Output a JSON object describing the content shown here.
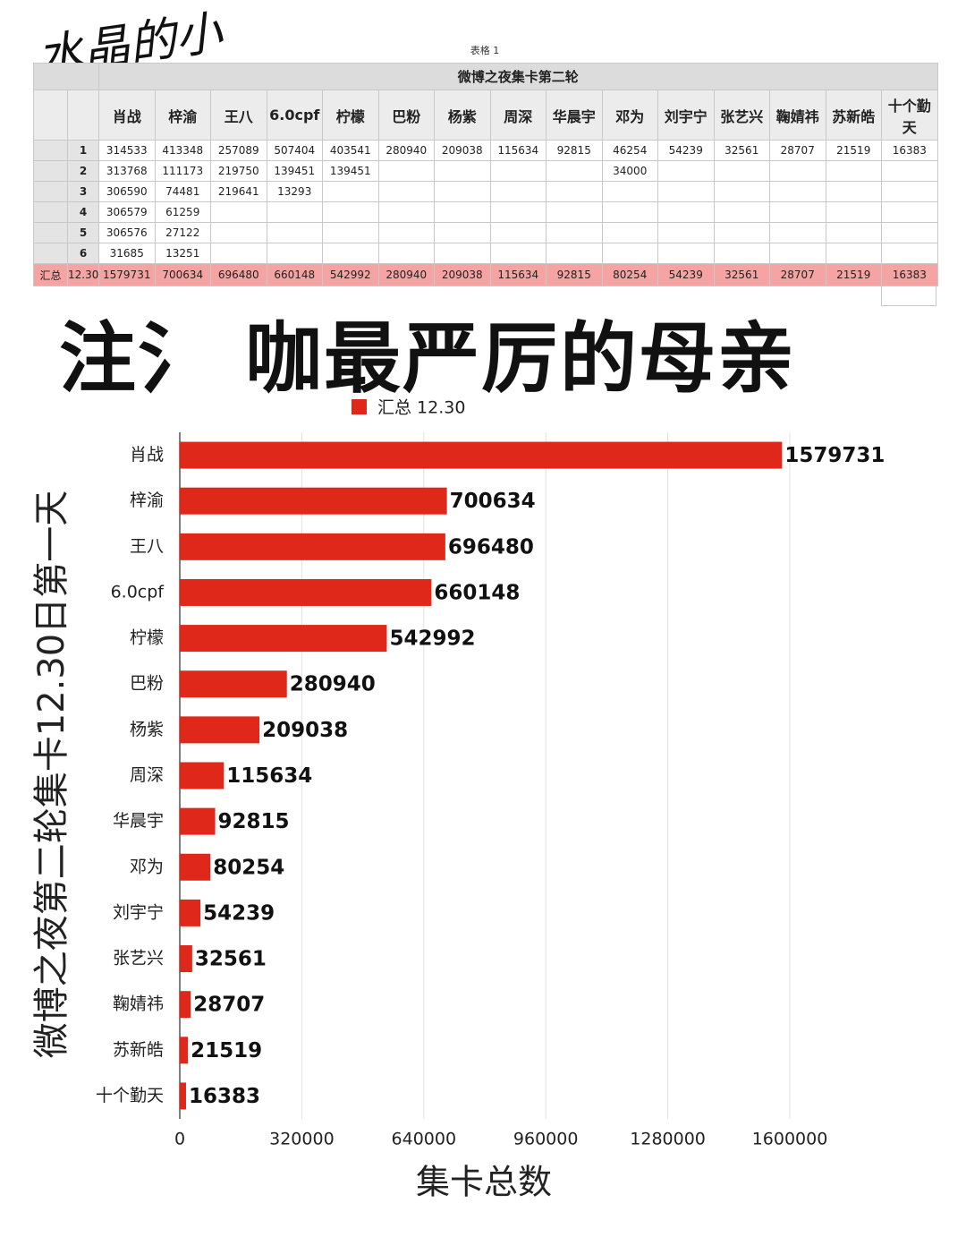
{
  "watermark": "水晶的小",
  "sheet_label": "表格 1",
  "table": {
    "title": "微博之夜集卡第二轮",
    "columns": [
      "肖战",
      "梓渝",
      "王八",
      "6.0cpf",
      "柠檬",
      "巴粉",
      "杨紫",
      "周深",
      "华晨宇",
      "邓为",
      "刘宇宁",
      "张艺兴",
      "鞠婧祎",
      "苏新皓",
      "十个勤天"
    ],
    "rows": [
      {
        "label": "1",
        "cells": [
          314533,
          413348,
          257089,
          507404,
          403541,
          280940,
          209038,
          115634,
          92815,
          46254,
          54239,
          32561,
          28707,
          21519,
          16383
        ]
      },
      {
        "label": "2",
        "cells": [
          313768,
          111173,
          219750,
          139451,
          139451,
          null,
          null,
          null,
          null,
          34000,
          null,
          null,
          null,
          null,
          null
        ]
      },
      {
        "label": "3",
        "cells": [
          306590,
          74481,
          219641,
          13293,
          null,
          null,
          null,
          null,
          null,
          null,
          null,
          null,
          null,
          null,
          null
        ]
      },
      {
        "label": "4",
        "cells": [
          306579,
          61259,
          null,
          null,
          null,
          null,
          null,
          null,
          null,
          null,
          null,
          null,
          null,
          null,
          null
        ]
      },
      {
        "label": "5",
        "cells": [
          306576,
          27122,
          null,
          null,
          null,
          null,
          null,
          null,
          null,
          null,
          null,
          null,
          null,
          null,
          null
        ]
      },
      {
        "label": "6",
        "cells": [
          31685,
          13251,
          null,
          null,
          null,
          null,
          null,
          null,
          null,
          null,
          null,
          null,
          null,
          null,
          null
        ]
      }
    ],
    "total": {
      "label": "汇总",
      "date": "12.30",
      "cells": [
        1579731,
        700634,
        696480,
        660148,
        542992,
        280940,
        209038,
        115634,
        92815,
        80254,
        54239,
        32561,
        28707,
        21519,
        16383
      ]
    }
  },
  "headline": "注氵 咖最严厉的母亲",
  "chart_data": {
    "type": "hbar",
    "x_label": "集卡总数",
    "y_label": "微博之夜第二轮集卡12.30日第一天",
    "categories": [
      "肖战",
      "梓渝",
      "王八",
      "6.0cpf",
      "柠檬",
      "巴粉",
      "杨紫",
      "周深",
      "华晨宇",
      "邓为",
      "刘宇宁",
      "张艺兴",
      "鞠婧祎",
      "苏新皓",
      "十个勤天"
    ],
    "series": [
      {
        "name": "汇总 12.30",
        "color": "#e0281a",
        "values": [
          1579731,
          700634,
          696480,
          660148,
          542992,
          280940,
          209038,
          115634,
          92815,
          80254,
          54239,
          32561,
          28707,
          21519,
          16383
        ]
      }
    ],
    "xlim": [
      0,
      1920000
    ],
    "xticks": [
      0,
      320000,
      640000,
      960000,
      1280000,
      1600000
    ],
    "grid": true,
    "legend": "top"
  }
}
